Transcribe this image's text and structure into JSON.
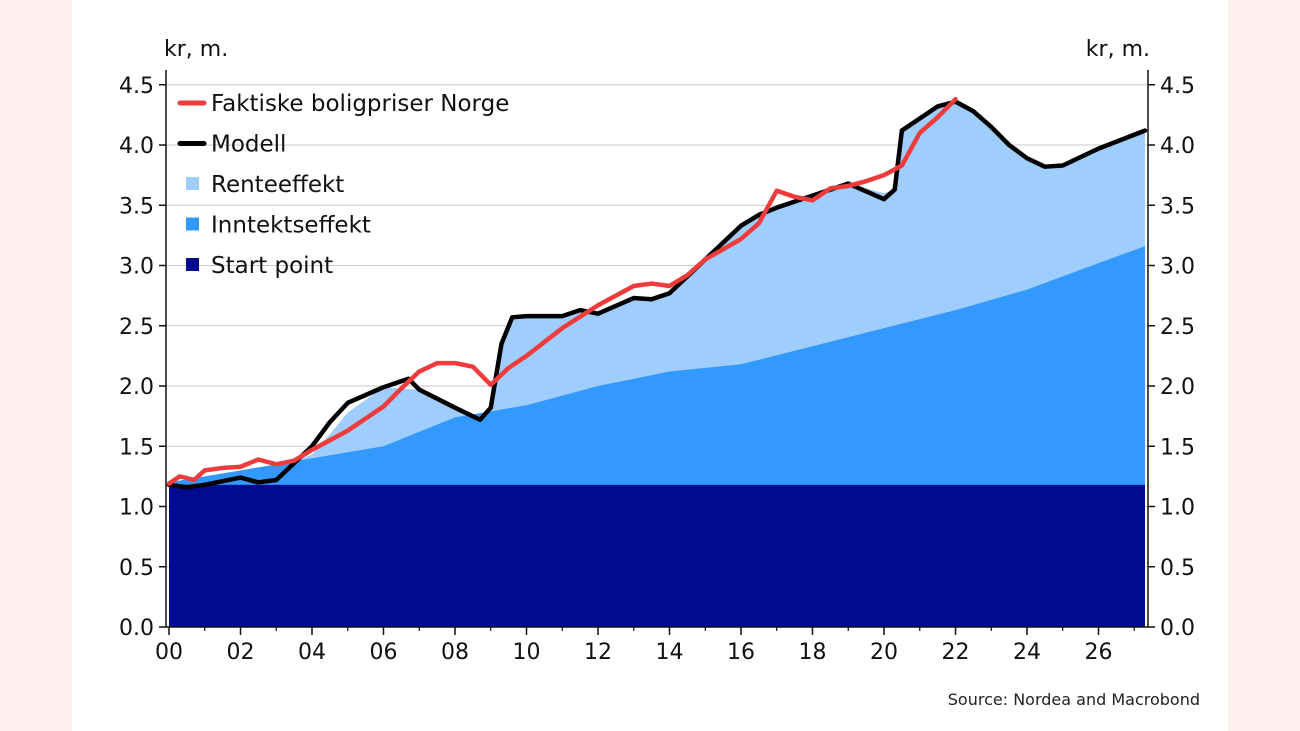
{
  "chart_data": {
    "type": "area",
    "unit_left": "kr, m.",
    "unit_right": "kr, m.",
    "source": "Source: Nordea and Macrobond",
    "ylim": [
      0,
      4.5
    ],
    "yticks": [
      0.0,
      0.5,
      1.0,
      1.5,
      2.0,
      2.5,
      3.0,
      3.5,
      4.0,
      4.5
    ],
    "ytick_labels": [
      "0.0",
      "0.5",
      "1.0",
      "1.5",
      "2.0",
      "2.5",
      "3.0",
      "3.5",
      "4.0",
      "4.5"
    ],
    "xlim": [
      2000,
      2027.5
    ],
    "xticks": [
      2000,
      2002,
      2004,
      2006,
      2008,
      2010,
      2012,
      2014,
      2016,
      2018,
      2020,
      2022,
      2024,
      2026
    ],
    "xtick_labels": [
      "00",
      "02",
      "04",
      "06",
      "08",
      "10",
      "12",
      "14",
      "16",
      "18",
      "20",
      "22",
      "24",
      "26"
    ],
    "grid": "horizontal",
    "legend_position": "top-left",
    "legend": [
      {
        "label": "Faktiske boligpriser Norge",
        "color": "#ef3b3b",
        "kind": "line"
      },
      {
        "label": "Modell",
        "color": "#000000",
        "kind": "line"
      },
      {
        "label": "Renteeffekt",
        "color": "#9fcdfd",
        "kind": "area"
      },
      {
        "label": "Inntektseffekt",
        "color": "#3399ff",
        "kind": "area"
      },
      {
        "label": "Start point",
        "color": "#020a91",
        "kind": "area"
      }
    ],
    "start_point": 1.18,
    "inntektseffekt": {
      "x": [
        2000,
        2002,
        2004,
        2006,
        2008,
        2010,
        2012,
        2014,
        2016,
        2018,
        2020,
        2022,
        2024,
        2026,
        2027.3
      ],
      "y": [
        1.2,
        1.3,
        1.4,
        1.5,
        1.74,
        1.84,
        2.0,
        2.12,
        2.18,
        2.33,
        2.48,
        2.63,
        2.8,
        3.02,
        3.16
      ]
    },
    "renteeffekt_top": {
      "x": [
        2000,
        2000.5,
        2001,
        2002,
        2002.5,
        2003,
        2004,
        2004.5,
        2005,
        2006,
        2007,
        2008,
        2008.7,
        2009,
        2009.3,
        2009.6,
        2010,
        2011,
        2011.5,
        2012,
        2013,
        2013.5,
        2014,
        2015,
        2016,
        2016.5,
        2017,
        2018,
        2019,
        2020,
        2020.3,
        2020.5,
        2021,
        2021.5,
        2022,
        2022.5,
        2023,
        2023.5,
        2024,
        2024.5,
        2025,
        2026,
        2027.3
      ],
      "y": [
        1.2,
        1.2,
        1.22,
        1.25,
        1.28,
        1.32,
        1.43,
        1.6,
        1.78,
        1.99,
        1.97,
        1.82,
        1.72,
        1.82,
        2.35,
        2.57,
        2.58,
        2.58,
        2.63,
        2.62,
        2.73,
        2.72,
        2.77,
        3.05,
        3.32,
        3.42,
        3.48,
        3.58,
        3.68,
        3.6,
        3.63,
        4.12,
        4.22,
        4.32,
        4.36,
        4.28,
        4.15,
        4.0,
        3.89,
        3.82,
        3.83,
        3.97,
        4.12
      ]
    },
    "series": [
      {
        "name": "Modell",
        "color": "#000000",
        "x": [
          2000,
          2000.5,
          2001,
          2002,
          2002.5,
          2003,
          2004,
          2004.5,
          2005,
          2006,
          2006.7,
          2007,
          2008,
          2008.7,
          2009,
          2009.3,
          2009.6,
          2010,
          2011,
          2011.5,
          2012,
          2013,
          2013.5,
          2014,
          2015,
          2016,
          2016.5,
          2017,
          2018,
          2019,
          2020,
          2020.3,
          2020.5,
          2021,
          2021.5,
          2022,
          2022.5,
          2023,
          2023.5,
          2024,
          2024.5,
          2025,
          2026,
          2027.3
        ],
        "y": [
          1.18,
          1.16,
          1.18,
          1.24,
          1.2,
          1.22,
          1.5,
          1.7,
          1.86,
          1.99,
          2.06,
          1.97,
          1.82,
          1.72,
          1.82,
          2.35,
          2.57,
          2.58,
          2.58,
          2.63,
          2.6,
          2.73,
          2.72,
          2.77,
          3.05,
          3.33,
          3.42,
          3.48,
          3.58,
          3.68,
          3.55,
          3.63,
          4.12,
          4.22,
          4.32,
          4.36,
          4.28,
          4.15,
          4.0,
          3.89,
          3.82,
          3.83,
          3.97,
          4.12
        ]
      },
      {
        "name": "Faktiske boligpriser Norge",
        "color": "#ef3b3b",
        "x": [
          2000,
          2000.3,
          2000.7,
          2001,
          2001.5,
          2002,
          2002.5,
          2003,
          2003.5,
          2004,
          2005,
          2006,
          2006.5,
          2007,
          2007.5,
          2008,
          2008.5,
          2009,
          2009.5,
          2010,
          2011,
          2012,
          2013,
          2013.5,
          2014,
          2014.5,
          2015,
          2016,
          2016.5,
          2017,
          2017.5,
          2018,
          2018.5,
          2019,
          2019.5,
          2020,
          2020.5,
          2021,
          2021.5,
          2022
        ],
        "y": [
          1.19,
          1.25,
          1.22,
          1.3,
          1.32,
          1.33,
          1.39,
          1.35,
          1.38,
          1.47,
          1.63,
          1.83,
          1.98,
          2.12,
          2.19,
          2.19,
          2.16,
          2.01,
          2.15,
          2.25,
          2.48,
          2.67,
          2.83,
          2.85,
          2.83,
          2.92,
          3.05,
          3.22,
          3.35,
          3.62,
          3.57,
          3.54,
          3.64,
          3.66,
          3.7,
          3.75,
          3.83,
          4.1,
          4.23,
          4.38
        ]
      }
    ]
  }
}
